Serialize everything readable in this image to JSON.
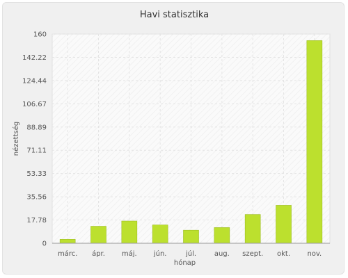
{
  "chart_data": {
    "type": "bar",
    "title": "Havi statisztika",
    "xlabel": "hónap",
    "ylabel": "nézettség",
    "categories": [
      "márc.",
      "ápr.",
      "máj.",
      "jún.",
      "júl.",
      "aug.",
      "szept.",
      "okt.",
      "nov."
    ],
    "values": [
      3,
      13,
      17,
      14,
      10,
      12,
      22,
      29,
      155
    ],
    "ylim": [
      0,
      160
    ],
    "yticks": [
      "0",
      "17.78",
      "35.56",
      "53.33",
      "71.11",
      "88.89",
      "106.67",
      "124.44",
      "142.22",
      "160"
    ],
    "grid": true,
    "colors": {
      "bar_fill": "#bce02e",
      "bar_stroke": "#9cbc20",
      "plot_bg": "#fafafa",
      "grid": "#e4e4e4",
      "frame_bg": "#f0f0f0"
    }
  }
}
